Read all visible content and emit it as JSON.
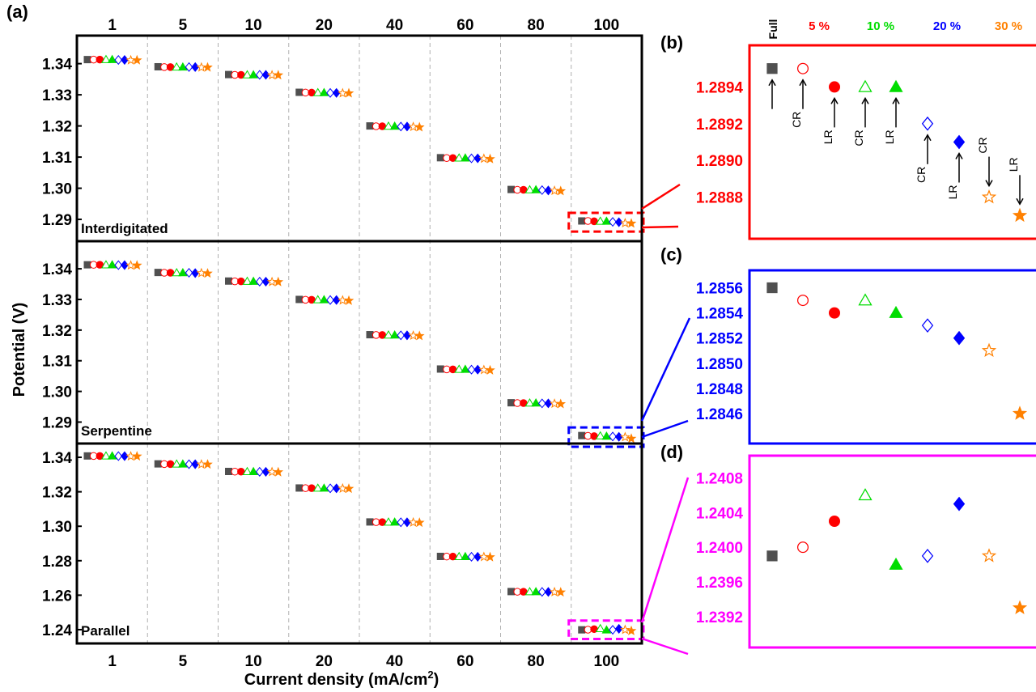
{
  "figure": {
    "x_axis_label": "Current density (mA/cm",
    "x_axis_label_sup": "2",
    "x_axis_label_end": ")",
    "y_axis_label": "Potential (V)",
    "panel_labels": {
      "a": "(a)",
      "b": "(b)",
      "c": "(c)",
      "d": "(d)"
    }
  },
  "legend": {
    "full_label": "Full",
    "groups": [
      {
        "label": "5 %",
        "color": "#ff0000"
      },
      {
        "label": "10 %",
        "color": "#00dd00"
      },
      {
        "label": "20 %",
        "color": "#0000ff"
      },
      {
        "label": "30 %",
        "color": "#ff8000"
      }
    ]
  },
  "chart_data": [
    {
      "type": "scatter",
      "panel": "a",
      "categories": [
        "1",
        "5",
        "10",
        "20",
        "40",
        "60",
        "80",
        "100"
      ],
      "series_order": [
        "Full",
        "CR 5%",
        "LR 5%",
        "CR 10%",
        "LR 10%",
        "CR 20%",
        "LR 20%",
        "CR 30%",
        "LR 30%"
      ],
      "subplots": [
        {
          "name": "Interdigitated",
          "ylim": [
            1.283,
            1.349
          ],
          "yticks": [
            "1.34",
            "1.33",
            "1.32",
            "1.31",
            "1.30",
            "1.29"
          ],
          "ytick_values": [
            1.34,
            1.33,
            1.32,
            1.31,
            1.3,
            1.29
          ],
          "values": [
            [
              1.3413,
              1.3413,
              1.3413,
              1.3413,
              1.3413,
              1.3412,
              1.3412,
              1.3411,
              1.3411
            ],
            [
              1.339,
              1.3389,
              1.3389,
              1.3389,
              1.3389,
              1.3389,
              1.3389,
              1.3388,
              1.3388
            ],
            [
              1.3365,
              1.3364,
              1.3364,
              1.3364,
              1.3364,
              1.3364,
              1.3364,
              1.3363,
              1.3363
            ],
            [
              1.3308,
              1.3307,
              1.3307,
              1.3307,
              1.3307,
              1.3306,
              1.3306,
              1.3305,
              1.3305
            ],
            [
              1.32,
              1.3199,
              1.3199,
              1.3199,
              1.3199,
              1.3198,
              1.3198,
              1.3197,
              1.3196
            ],
            [
              1.3098,
              1.3097,
              1.3097,
              1.3097,
              1.3097,
              1.3096,
              1.3096,
              1.3095,
              1.3094
            ],
            [
              1.2996,
              1.2995,
              1.2995,
              1.2995,
              1.2995,
              1.2994,
              1.2993,
              1.2992,
              1.2991
            ],
            [
              1.2895,
              1.2895,
              1.2894,
              1.2894,
              1.2894,
              1.2892,
              1.2891,
              1.2888,
              1.2887
            ]
          ]
        },
        {
          "name": "Serpentine",
          "ylim": [
            1.283,
            1.349
          ],
          "yticks": [
            "1.34",
            "1.33",
            "1.32",
            "1.31",
            "1.30",
            "1.29"
          ],
          "ytick_values": [
            1.34,
            1.33,
            1.32,
            1.31,
            1.3,
            1.29
          ],
          "values": [
            [
              1.3413,
              1.3413,
              1.3413,
              1.3413,
              1.3413,
              1.3412,
              1.3412,
              1.3411,
              1.3411
            ],
            [
              1.3388,
              1.3387,
              1.3387,
              1.3387,
              1.3387,
              1.3387,
              1.3386,
              1.3386,
              1.3385
            ],
            [
              1.336,
              1.3359,
              1.3359,
              1.3359,
              1.3359,
              1.3358,
              1.3358,
              1.3357,
              1.3357
            ],
            [
              1.33,
              1.3299,
              1.3299,
              1.3299,
              1.3299,
              1.3298,
              1.3298,
              1.3297,
              1.3296
            ],
            [
              1.3185,
              1.3184,
              1.3184,
              1.3184,
              1.3184,
              1.3183,
              1.3183,
              1.3182,
              1.3181
            ],
            [
              1.3073,
              1.3072,
              1.3072,
              1.3072,
              1.3072,
              1.3071,
              1.3071,
              1.307,
              1.3069
            ],
            [
              1.2963,
              1.2962,
              1.2962,
              1.2962,
              1.2962,
              1.2961,
              1.2961,
              1.296,
              1.2959
            ],
            [
              1.2856,
              1.2855,
              1.2854,
              1.2855,
              1.2854,
              1.2853,
              1.2852,
              1.2851,
              1.2846
            ]
          ]
        },
        {
          "name": "Parallel",
          "ylim": [
            1.232,
            1.348
          ],
          "yticks": [
            "1.34",
            "1.32",
            "1.30",
            "1.28",
            "1.26",
            "1.24"
          ],
          "ytick_values": [
            1.34,
            1.32,
            1.3,
            1.28,
            1.26,
            1.24
          ],
          "values": [
            [
              1.3408,
              1.3408,
              1.3408,
              1.3408,
              1.3408,
              1.3407,
              1.3407,
              1.3406,
              1.3406
            ],
            [
              1.3362,
              1.3361,
              1.3361,
              1.3361,
              1.3361,
              1.336,
              1.336,
              1.3359,
              1.3359
            ],
            [
              1.3318,
              1.3317,
              1.3317,
              1.3317,
              1.3317,
              1.3316,
              1.3316,
              1.3315,
              1.3314
            ],
            [
              1.3222,
              1.3221,
              1.3221,
              1.3221,
              1.3221,
              1.322,
              1.322,
              1.3219,
              1.3218
            ],
            [
              1.3025,
              1.3024,
              1.3024,
              1.3024,
              1.3024,
              1.3023,
              1.3023,
              1.3022,
              1.3021
            ],
            [
              1.2825,
              1.2824,
              1.2824,
              1.2824,
              1.2824,
              1.2823,
              1.2823,
              1.2822,
              1.2821
            ],
            [
              1.2621,
              1.262,
              1.262,
              1.262,
              1.262,
              1.2619,
              1.2619,
              1.2618,
              1.2617
            ],
            [
              1.2399,
              1.24,
              1.2403,
              1.2406,
              1.2398,
              1.2399,
              1.2405,
              1.2399,
              1.2393
            ]
          ]
        }
      ]
    },
    {
      "type": "scatter",
      "panel": "b",
      "border_color": "#ff0000",
      "tick_color": "#ff0000",
      "ylim": [
        1.2886,
        1.2896
      ],
      "yticks": [
        "1.2894",
        "1.2892",
        "1.2890",
        "1.2888"
      ],
      "ytick_values": [
        1.2894,
        1.2892,
        1.289,
        1.2888
      ],
      "values": [
        1.2895,
        1.2895,
        1.2894,
        1.2894,
        1.2894,
        1.2892,
        1.2891,
        1.2888,
        1.2887
      ],
      "annotations": [
        {
          "idx": 0,
          "text": "",
          "dir": "up"
        },
        {
          "idx": 1,
          "text": "CR",
          "dir": "up"
        },
        {
          "idx": 2,
          "text": "LR",
          "dir": "up"
        },
        {
          "idx": 3,
          "text": "CR",
          "dir": "up"
        },
        {
          "idx": 4,
          "text": "LR",
          "dir": "up"
        },
        {
          "idx": 5,
          "text": "CR",
          "dir": "up"
        },
        {
          "idx": 6,
          "text": "LR",
          "dir": "up"
        },
        {
          "idx": 7,
          "text": "CR",
          "dir": "down"
        },
        {
          "idx": 8,
          "text": "LR",
          "dir": "down"
        }
      ]
    },
    {
      "type": "scatter",
      "panel": "c",
      "border_color": "#0000ff",
      "tick_color": "#0000ff",
      "ylim": [
        1.2844,
        1.2857
      ],
      "yticks": [
        "1.2856",
        "1.2854",
        "1.2852",
        "1.2850",
        "1.2848",
        "1.2846"
      ],
      "ytick_values": [
        1.2856,
        1.2854,
        1.2852,
        1.285,
        1.2848,
        1.2846
      ],
      "values": [
        1.2856,
        1.2855,
        1.2854,
        1.2855,
        1.2854,
        1.2853,
        1.2852,
        1.2851,
        1.2846
      ]
    },
    {
      "type": "scatter",
      "panel": "d",
      "border_color": "#ff00ff",
      "tick_color": "#ff00ff",
      "ylim": [
        1.2389,
        1.241
      ],
      "yticks": [
        "1.2408",
        "1.2404",
        "1.2400",
        "1.2396",
        "1.2392"
      ],
      "ytick_values": [
        1.2408,
        1.2404,
        1.24,
        1.2396,
        1.2392
      ],
      "values": [
        1.2399,
        1.24,
        1.2403,
        1.2406,
        1.2398,
        1.2399,
        1.2405,
        1.2399,
        1.2393
      ]
    }
  ],
  "marker_styles": [
    {
      "shape": "square",
      "fill": true,
      "color": "#505050"
    },
    {
      "shape": "circle",
      "fill": false,
      "color": "#ff0000"
    },
    {
      "shape": "circle",
      "fill": true,
      "color": "#ff0000"
    },
    {
      "shape": "triangle",
      "fill": false,
      "color": "#00dd00"
    },
    {
      "shape": "triangle",
      "fill": true,
      "color": "#00dd00"
    },
    {
      "shape": "diamond",
      "fill": false,
      "color": "#0000ff"
    },
    {
      "shape": "diamond",
      "fill": true,
      "color": "#0000ff"
    },
    {
      "shape": "star",
      "fill": false,
      "color": "#ff8000"
    },
    {
      "shape": "star",
      "fill": true,
      "color": "#ff8000"
    }
  ],
  "highlight_colors": [
    "#ff0000",
    "#0000ff",
    "#ff00ff"
  ]
}
